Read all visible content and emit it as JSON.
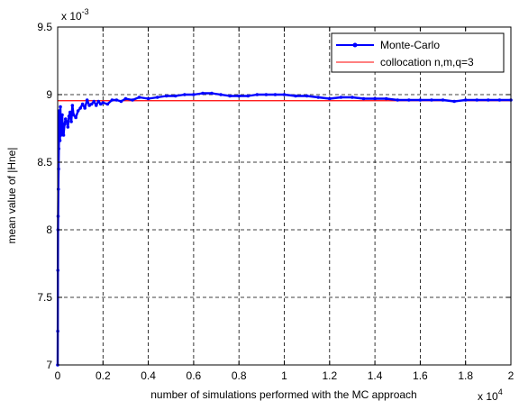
{
  "chart_data": {
    "type": "line",
    "title": "",
    "xlabel": "number of simulations performed with the MC approach",
    "ylabel": "mean value of |Hne|",
    "x_exponent_label": "x 10",
    "x_exponent_power": "4",
    "y_exponent_label": "x 10",
    "y_exponent_power": "-3",
    "xlim": [
      0,
      20000
    ],
    "ylim": [
      0.007,
      0.0095
    ],
    "x_ticks": [
      0,
      2000,
      4000,
      6000,
      8000,
      10000,
      12000,
      14000,
      16000,
      18000,
      20000
    ],
    "x_tick_labels": [
      "0",
      "0.2",
      "0.4",
      "0.6",
      "0.8",
      "1",
      "1.2",
      "1.4",
      "1.6",
      "1.8",
      "2"
    ],
    "y_ticks": [
      0.007,
      0.0075,
      0.008,
      0.0085,
      0.009,
      0.0095
    ],
    "y_tick_labels": [
      "7",
      "7.5",
      "8",
      "8.5",
      "9",
      "9.5"
    ],
    "grid": true,
    "legend_position": "top-right",
    "series": [
      {
        "name": "Monte-Carlo",
        "color": "#0000ff",
        "marker": "dot",
        "x": [
          0,
          5,
          10,
          15,
          20,
          30,
          40,
          50,
          60,
          70,
          80,
          100,
          120,
          140,
          160,
          180,
          200,
          230,
          260,
          300,
          350,
          400,
          450,
          500,
          550,
          600,
          650,
          700,
          800,
          900,
          1000,
          1100,
          1200,
          1300,
          1400,
          1500,
          1600,
          1700,
          1800,
          1900,
          2000,
          2200,
          2400,
          2600,
          2800,
          3000,
          3300,
          3600,
          4000,
          4400,
          4800,
          5200,
          5600,
          6000,
          6400,
          6800,
          7200,
          7600,
          8000,
          8400,
          8800,
          9200,
          9600,
          10000,
          10500,
          11000,
          11500,
          12000,
          12500,
          13000,
          13500,
          14000,
          14500,
          15000,
          15500,
          16000,
          16500,
          17000,
          17500,
          18000,
          18500,
          19000,
          19500,
          20000
        ],
        "y": [
          0.007,
          0.00725,
          0.0077,
          0.008,
          0.0081,
          0.0083,
          0.00845,
          0.0086,
          0.00868,
          0.00888,
          0.0087,
          0.00866,
          0.00891,
          0.0087,
          0.00873,
          0.00878,
          0.00885,
          0.00872,
          0.0087,
          0.00878,
          0.00882,
          0.0088,
          0.00876,
          0.00884,
          0.00887,
          0.0088,
          0.00892,
          0.00885,
          0.00883,
          0.00888,
          0.0089,
          0.00893,
          0.0089,
          0.00896,
          0.00892,
          0.00893,
          0.00895,
          0.00892,
          0.00895,
          0.00893,
          0.00894,
          0.00893,
          0.00896,
          0.00896,
          0.00895,
          0.00897,
          0.00896,
          0.00898,
          0.00897,
          0.00898,
          0.00899,
          0.00899,
          0.009,
          0.009,
          0.00901,
          0.00901,
          0.009,
          0.00899,
          0.00899,
          0.00899,
          0.009,
          0.009,
          0.009,
          0.009,
          0.00899,
          0.00899,
          0.00898,
          0.00897,
          0.00898,
          0.00898,
          0.00897,
          0.00897,
          0.00897,
          0.00896,
          0.00896,
          0.00896,
          0.00896,
          0.00896,
          0.00895,
          0.00896,
          0.00896,
          0.00896,
          0.00896,
          0.00896
        ]
      },
      {
        "name": "collocation n,m,q=3",
        "color": "#ff0000",
        "marker": "none",
        "x": [
          0,
          20000
        ],
        "y": [
          0.008955,
          0.008955
        ]
      }
    ]
  }
}
